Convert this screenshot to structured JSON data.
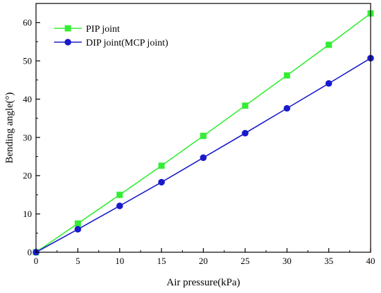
{
  "chart_data": {
    "type": "line",
    "title": "",
    "xlabel": "Air pressure(kPa)",
    "ylabel": "Bending angle(°)",
    "xlim": [
      0,
      40
    ],
    "ylim": [
      0,
      65
    ],
    "xticks": [
      0,
      5,
      10,
      15,
      20,
      25,
      30,
      35,
      40
    ],
    "yticks": [
      0,
      10,
      20,
      30,
      40,
      50,
      60
    ],
    "grid": false,
    "legend_position": "top-left",
    "x": [
      0,
      5,
      10,
      15,
      20,
      25,
      30,
      35,
      40
    ],
    "series": [
      {
        "name": "PIP joint",
        "color": "#33ee33",
        "marker": "square",
        "values": [
          0,
          7.5,
          15.0,
          22.6,
          30.4,
          38.3,
          46.2,
          54.2,
          62.4
        ]
      },
      {
        "name": "DIP joint(MCP joint)",
        "color": "#1a1acc",
        "marker": "circle",
        "values": [
          0,
          6.0,
          12.1,
          18.3,
          24.7,
          31.1,
          37.6,
          44.1,
          50.7
        ]
      }
    ]
  }
}
